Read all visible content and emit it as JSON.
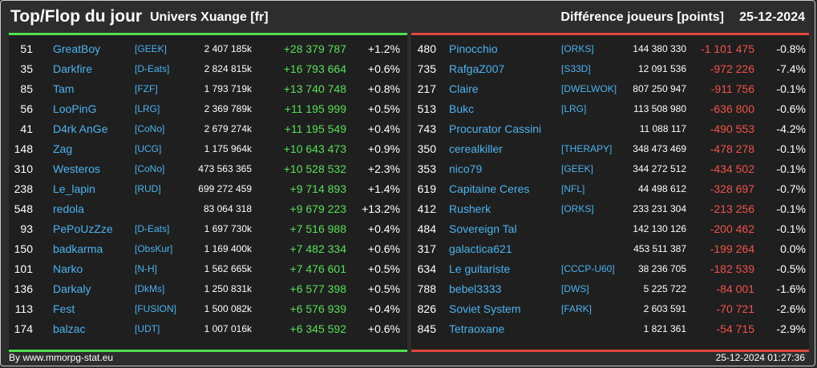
{
  "header": {
    "title": "Top/Flop du jour",
    "universe": "Univers Xuange [fr]",
    "metric": "Différence joueurs [points]",
    "date": "25-12-2024"
  },
  "colors": {
    "top_accent": "#4ee04e",
    "flop_accent": "#e0463e",
    "link": "#4ab3f0"
  },
  "top": [
    {
      "rank": "51",
      "name": "GreatBoy",
      "ally": "[GEEK]",
      "total": "2 407 185k",
      "diff": "+28 379 787",
      "pct": "+1.2%"
    },
    {
      "rank": "35",
      "name": "Darkfire",
      "ally": "[D-Eats]",
      "total": "2 824 815k",
      "diff": "+16 793 664",
      "pct": "+0.6%"
    },
    {
      "rank": "85",
      "name": "Tam",
      "ally": "[FZF]",
      "total": "1 793 719k",
      "diff": "+13 740 748",
      "pct": "+0.8%"
    },
    {
      "rank": "56",
      "name": "LooPinG",
      "ally": "[LRG]",
      "total": "2 369 789k",
      "diff": "+11 195 999",
      "pct": "+0.5%"
    },
    {
      "rank": "41",
      "name": "D4rk AnGe",
      "ally": "[CoNo]",
      "total": "2 679 274k",
      "diff": "+11 195 549",
      "pct": "+0.4%"
    },
    {
      "rank": "148",
      "name": "Zag",
      "ally": "[UCG]",
      "total": "1 175 964k",
      "diff": "+10 643 473",
      "pct": "+0.9%"
    },
    {
      "rank": "310",
      "name": "Westeros",
      "ally": "[CoNo]",
      "total": "473 563 365",
      "diff": "+10 528 532",
      "pct": "+2.3%"
    },
    {
      "rank": "238",
      "name": "Le_lapin",
      "ally": "[RUD]",
      "total": "699 272 459",
      "diff": "+9 714 893",
      "pct": "+1.4%"
    },
    {
      "rank": "548",
      "name": "redola",
      "ally": "",
      "total": "83 064 318",
      "diff": "+9 679 223",
      "pct": "+13.2%"
    },
    {
      "rank": "93",
      "name": "PePoUzZze",
      "ally": "[D-Eats]",
      "total": "1 697 730k",
      "diff": "+7 516 988",
      "pct": "+0.4%"
    },
    {
      "rank": "150",
      "name": "badkarma",
      "ally": "[ObsKur]",
      "total": "1 169 400k",
      "diff": "+7 482 334",
      "pct": "+0.6%"
    },
    {
      "rank": "101",
      "name": "Narko",
      "ally": "[N-H]",
      "total": "1 562 665k",
      "diff": "+7 476 601",
      "pct": "+0.5%"
    },
    {
      "rank": "136",
      "name": "Darkaly",
      "ally": "[DkMs]",
      "total": "1 250 831k",
      "diff": "+6 577 398",
      "pct": "+0.5%"
    },
    {
      "rank": "113",
      "name": "Fest",
      "ally": "[FUSION]",
      "total": "1 500 082k",
      "diff": "+6 576 939",
      "pct": "+0.4%"
    },
    {
      "rank": "174",
      "name": "balzac",
      "ally": "[UDT]",
      "total": "1 007 016k",
      "diff": "+6 345 592",
      "pct": "+0.6%"
    }
  ],
  "flop": [
    {
      "rank": "480",
      "name": "Pinocchio",
      "ally": "[ORKS]",
      "total": "144 380 330",
      "diff": "-1 101 475",
      "pct": "-0.8%"
    },
    {
      "rank": "735",
      "name": "RafgaZ007",
      "ally": "[S33D]",
      "total": "12 091 536",
      "diff": "-972 226",
      "pct": "-7.4%"
    },
    {
      "rank": "217",
      "name": "Claire",
      "ally": "[DWELWOK]",
      "total": "807 250 947",
      "diff": "-911 756",
      "pct": "-0.1%"
    },
    {
      "rank": "513",
      "name": "Bukc",
      "ally": "[LRG]",
      "total": "113 508 980",
      "diff": "-636 800",
      "pct": "-0.6%"
    },
    {
      "rank": "743",
      "name": "Procurator Cassini",
      "ally": "",
      "total": "11 088 117",
      "diff": "-490 553",
      "pct": "-4.2%"
    },
    {
      "rank": "350",
      "name": "cerealkiller",
      "ally": "[THERAPY]",
      "total": "348 473 469",
      "diff": "-478 278",
      "pct": "-0.1%"
    },
    {
      "rank": "353",
      "name": "nico79",
      "ally": "[GEEK]",
      "total": "344 272 512",
      "diff": "-434 502",
      "pct": "-0.1%"
    },
    {
      "rank": "619",
      "name": "Capitaine Ceres",
      "ally": "[NFL]",
      "total": "44 498 612",
      "diff": "-328 697",
      "pct": "-0.7%"
    },
    {
      "rank": "412",
      "name": "Rusherk",
      "ally": "[ORKS]",
      "total": "233 231 304",
      "diff": "-213 256",
      "pct": "-0.1%"
    },
    {
      "rank": "484",
      "name": "Sovereign Tal",
      "ally": "",
      "total": "142 130 126",
      "diff": "-200 462",
      "pct": "-0.1%"
    },
    {
      "rank": "317",
      "name": "galactica621",
      "ally": "",
      "total": "453 511 387",
      "diff": "-199 264",
      "pct": "0.0%"
    },
    {
      "rank": "634",
      "name": "Le guitariste",
      "ally": "[CCCP-U60]",
      "total": "38 236 705",
      "diff": "-182 539",
      "pct": "-0.5%"
    },
    {
      "rank": "788",
      "name": "bebel3333",
      "ally": "[DWS]",
      "total": "5 225 722",
      "diff": "-84 001",
      "pct": "-1.6%"
    },
    {
      "rank": "826",
      "name": "Soviet System",
      "ally": "[FARK]",
      "total": "2 603 591",
      "diff": "-70 721",
      "pct": "-2.6%"
    },
    {
      "rank": "845",
      "name": "Tetraoxane",
      "ally": "",
      "total": "1 821 361",
      "diff": "-54 715",
      "pct": "-2.9%"
    }
  ],
  "footer": {
    "credit": "By www.mmorpg-stat.eu",
    "timestamp": "25-12-2024 01:27:36"
  }
}
